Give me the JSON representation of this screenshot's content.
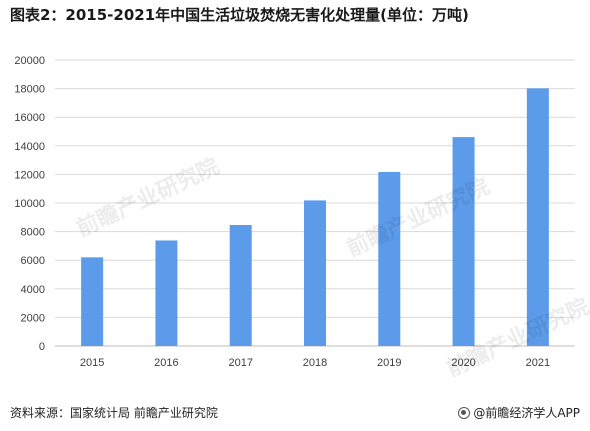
{
  "title": "图表2：2015-2021年中国生活垃圾焚烧无害化处理量(单位：万吨)",
  "source": "资料来源：国家统计局 前瞻产业研究院",
  "brand": "@前瞻经济学人APP",
  "watermark": "前瞻产业研究院",
  "colors": {
    "bar": "#5b9bea",
    "grid": "#d9d9d9",
    "axis": "#bfbfbf"
  },
  "chart_data": {
    "type": "bar",
    "categories": [
      "2015",
      "2016",
      "2017",
      "2018",
      "2019",
      "2020",
      "2021"
    ],
    "values": [
      6200,
      7380,
      8460,
      10180,
      12170,
      14610,
      18020
    ],
    "ylim": [
      0,
      20000
    ],
    "yticks": [
      0,
      2000,
      4000,
      6000,
      8000,
      10000,
      12000,
      14000,
      16000,
      18000,
      20000
    ],
    "xlabel": "",
    "ylabel": "",
    "grid": true,
    "legend": "none"
  }
}
